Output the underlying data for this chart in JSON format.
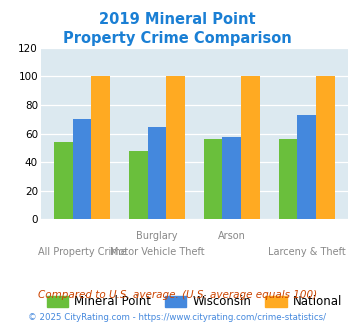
{
  "title_line1": "2019 Mineral Point",
  "title_line2": "Property Crime Comparison",
  "title_color": "#1a7fd4",
  "mineral_point": [
    54,
    48,
    56,
    56
  ],
  "wisconsin": [
    70,
    65,
    58,
    73
  ],
  "national": [
    100,
    100,
    100,
    100
  ],
  "bar_colors": {
    "mineral_point": "#6abf3c",
    "wisconsin": "#4488dd",
    "national": "#ffaa22"
  },
  "ylim": [
    0,
    120
  ],
  "yticks": [
    0,
    20,
    40,
    60,
    80,
    100,
    120
  ],
  "plot_bg": "#dce9f0",
  "legend_labels": [
    "Mineral Point",
    "Wisconsin",
    "National"
  ],
  "x_top_labels": [
    "",
    "Burglary",
    "Arson",
    ""
  ],
  "x_bottom_labels": [
    "All Property Crime",
    "Motor Vehicle Theft",
    "",
    "Larceny & Theft"
  ],
  "footnote1": "Compared to U.S. average. (U.S. average equals 100)",
  "footnote2": "© 2025 CityRating.com - https://www.cityrating.com/crime-statistics/",
  "footnote1_color": "#cc4400",
  "footnote2_color": "#4488dd",
  "footnote2_prefix_color": "#888888"
}
